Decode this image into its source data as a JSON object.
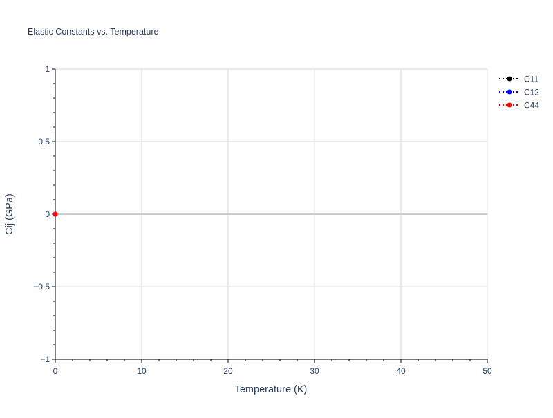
{
  "chart_data": {
    "type": "line",
    "title": "Elastic Constants vs. Temperature",
    "xlabel": "Temperature (K)",
    "ylabel": "Cij (GPa)",
    "xlim": [
      0,
      50
    ],
    "ylim": [
      -1,
      1
    ],
    "xticks": [
      0,
      10,
      20,
      30,
      40,
      50
    ],
    "xtick_labels": [
      "0",
      "10",
      "20",
      "30",
      "40",
      "50"
    ],
    "yticks": [
      -1,
      -0.5,
      0,
      0.5,
      1
    ],
    "ytick_labels": [
      "−1",
      "−0.5",
      "0",
      "0.5",
      "1"
    ],
    "grid": true,
    "legend_position": "top-right",
    "series": [
      {
        "name": "C11",
        "color": "#000000",
        "line_style": "dotted",
        "x": [
          0
        ],
        "y": [
          0
        ]
      },
      {
        "name": "C12",
        "color": "#0000ff",
        "line_style": "dotted",
        "x": [
          0
        ],
        "y": [
          0
        ]
      },
      {
        "name": "C44",
        "color": "#ff0000",
        "line_style": "dotted",
        "x": [
          0
        ],
        "y": [
          0
        ]
      }
    ]
  }
}
